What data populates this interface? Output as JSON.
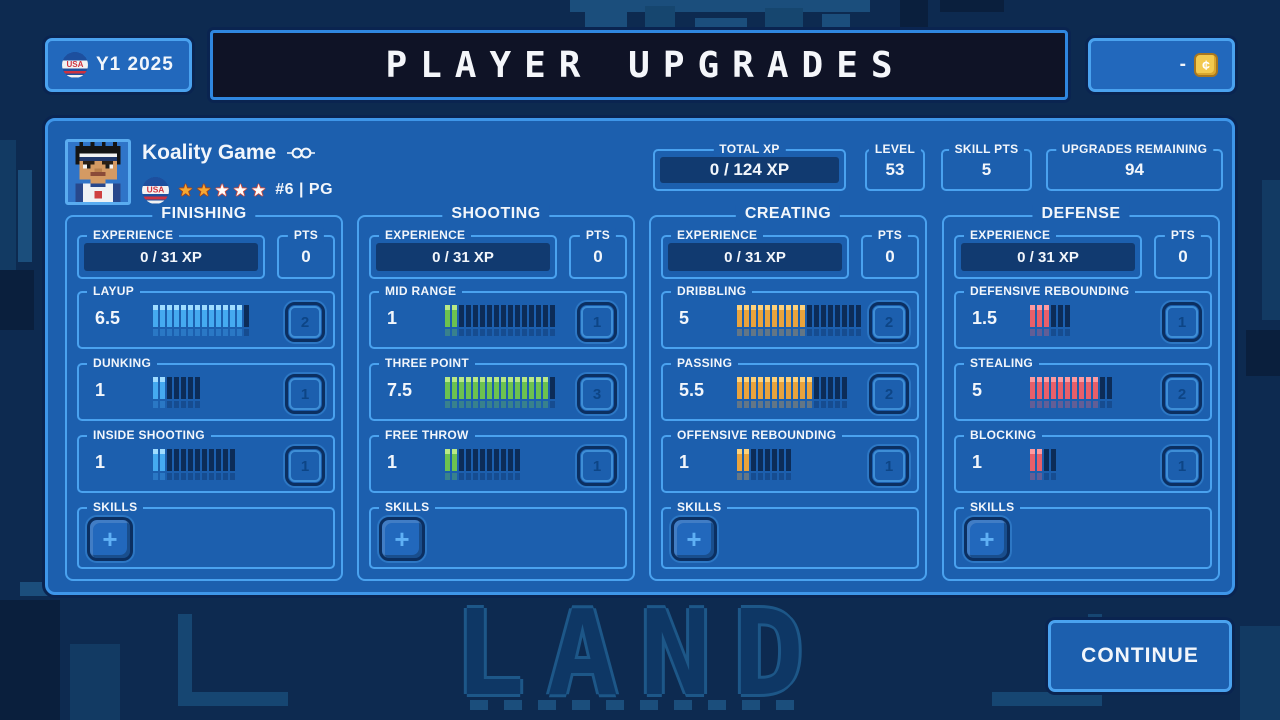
{
  "header": {
    "season_badge": {
      "label": "Y1 2025"
    },
    "title": "PLAYER UPGRADES",
    "coin": {
      "value": "-",
      "symbol": "¢"
    }
  },
  "player": {
    "name": "Koality Game",
    "position_line": "#6 | PG",
    "rating": {
      "filled": 2,
      "total": 5,
      "glyph": "★"
    }
  },
  "summary": {
    "total_xp": {
      "label": "TOTAL XP",
      "value": "0 / 124 XP"
    },
    "level": {
      "label": "LEVEL",
      "value": "53"
    },
    "skill_pts": {
      "label": "SKILL PTS",
      "value": "5"
    },
    "upgrades": {
      "label": "UPGRADES REMAINING",
      "value": "94"
    }
  },
  "columns": [
    {
      "title": "FINISHING",
      "experience_label": "EXPERIENCE",
      "experience": "0 / 31 XP",
      "pts_label": "PTS",
      "pts": "0",
      "skills_label": "SKILLS",
      "skills_plus": "+",
      "bar": {
        "base": "#45aaf0",
        "light": "#9fdcff"
      },
      "stats": [
        {
          "label": "LAYUP",
          "value": "6.5",
          "filled": 13,
          "total": 14,
          "cost": "2"
        },
        {
          "label": "DUNKING",
          "value": "1",
          "filled": 2,
          "total": 7,
          "cost": "1"
        },
        {
          "label": "INSIDE SHOOTING",
          "value": "1",
          "filled": 2,
          "total": 12,
          "cost": "1"
        }
      ]
    },
    {
      "title": "SHOOTING",
      "experience_label": "EXPERIENCE",
      "experience": "0 / 31 XP",
      "pts_label": "PTS",
      "pts": "0",
      "skills_label": "SKILLS",
      "skills_plus": "+",
      "bar": {
        "base": "#6cc24f",
        "light": "#b8e986"
      },
      "stats": [
        {
          "label": "MID RANGE",
          "value": "1",
          "filled": 2,
          "total": 16,
          "cost": "1"
        },
        {
          "label": "THREE POINT",
          "value": "7.5",
          "filled": 15,
          "total": 16,
          "cost": "3"
        },
        {
          "label": "FREE THROW",
          "value": "1",
          "filled": 2,
          "total": 11,
          "cost": "1"
        }
      ]
    },
    {
      "title": "CREATING",
      "experience_label": "EXPERIENCE",
      "experience": "0 / 31 XP",
      "pts_label": "PTS",
      "pts": "0",
      "skills_label": "SKILLS",
      "skills_plus": "+",
      "bar": {
        "base": "#e9a33c",
        "light": "#ffd27a"
      },
      "stats": [
        {
          "label": "DRIBBLING",
          "value": "5",
          "filled": 10,
          "total": 18,
          "cost": "2"
        },
        {
          "label": "PASSING",
          "value": "5.5",
          "filled": 11,
          "total": 16,
          "cost": "2"
        },
        {
          "label": "OFFENSIVE REBOUNDING",
          "value": "1",
          "filled": 2,
          "total": 8,
          "cost": "1"
        }
      ]
    },
    {
      "title": "DEFENSE",
      "experience_label": "EXPERIENCE",
      "experience": "0 / 31 XP",
      "pts_label": "PTS",
      "pts": "0",
      "skills_label": "SKILLS",
      "skills_plus": "+",
      "bar": {
        "base": "#e85f6a",
        "light": "#ff9aa0"
      },
      "stats": [
        {
          "label": "DEFENSIVE REBOUNDING",
          "value": "1.5",
          "filled": 3,
          "total": 6,
          "cost": "1"
        },
        {
          "label": "STEALING",
          "value": "5",
          "filled": 10,
          "total": 12,
          "cost": "2"
        },
        {
          "label": "BLOCKING",
          "value": "1",
          "filled": 2,
          "total": 4,
          "cost": "1"
        }
      ]
    }
  ],
  "footer": {
    "continue_label": "CONTINUE"
  },
  "background": {
    "watermark": "LAND"
  },
  "colors": {
    "bar_unfilled": "#0c2c58",
    "panel": "#1c5fae",
    "panel_border": "#3e96e9",
    "page_bg": "#0d2a50"
  }
}
